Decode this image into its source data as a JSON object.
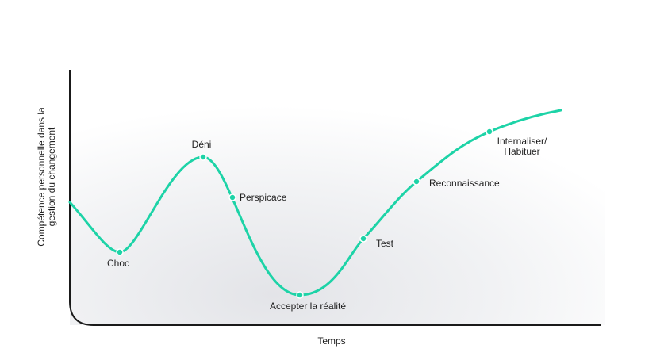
{
  "diagram": {
    "x_axis_label": "Temps",
    "y_axis_label_line1": "Compétence personnelle dans la",
    "y_axis_label_line2": "gestion du changement",
    "stages": [
      {
        "label": "Choc"
      },
      {
        "label": "Déni"
      },
      {
        "label": "Perspicace"
      },
      {
        "label": "Accepter la réalité"
      },
      {
        "label": "Test"
      },
      {
        "label": "Reconnaissance"
      },
      {
        "label_line1": "Internaliser/",
        "label_line2": "Habituer"
      }
    ],
    "colors": {
      "curve": "#1dd3a7",
      "axis": "#1a1a1a",
      "text": "#1f1f1f",
      "background_shade": "#e6e7ea"
    }
  }
}
